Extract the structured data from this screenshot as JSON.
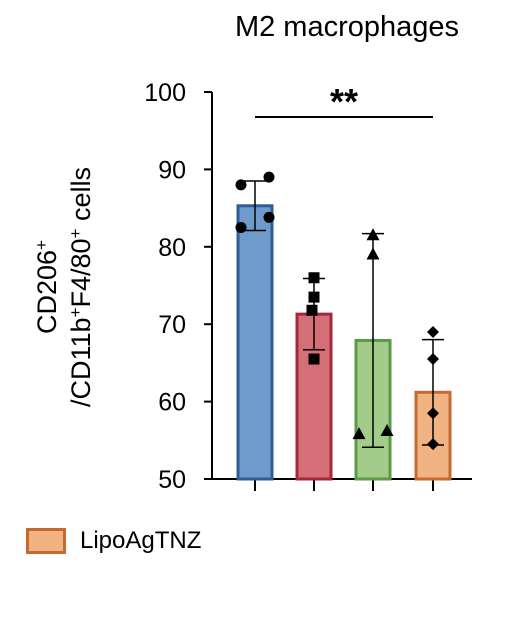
{
  "chart_data": {
    "type": "bar",
    "title": "M2 macrophages",
    "ylabel_lines": [
      "CD206",
      "/CD11b",
      "F4/80",
      " cells"
    ],
    "ylabel_superscripts": [
      "+",
      "+",
      "+"
    ],
    "ylim": [
      50,
      100
    ],
    "yticks": [
      "50",
      "60",
      "70",
      "80",
      "90",
      "100"
    ],
    "significance": "**",
    "legend": [
      "LipoAgTNZ"
    ],
    "bars": [
      {
        "value": 85.3,
        "sd": 3.2,
        "fill": "#6e9bcc",
        "stroke": "#2e5d96",
        "marker": "circle",
        "points": [
          88.0,
          89.0,
          82.5,
          83.8
        ]
      },
      {
        "value": 71.3,
        "sd": 4.6,
        "fill": "#d56f77",
        "stroke": "#a3283b",
        "marker": "square",
        "points": [
          76.0,
          73.5,
          71.8,
          65.5
        ]
      },
      {
        "value": 67.9,
        "sd": 13.8,
        "fill": "#a3cc8b",
        "stroke": "#5c9a48",
        "marker": "triangle",
        "points": [
          81.5,
          79.0,
          55.8,
          56.2
        ]
      },
      {
        "value": 61.2,
        "sd": 6.8,
        "fill": "#f0b381",
        "stroke": "#c56a30",
        "marker": "diamond",
        "points": [
          69.0,
          65.5,
          58.5,
          54.5
        ]
      }
    ]
  }
}
